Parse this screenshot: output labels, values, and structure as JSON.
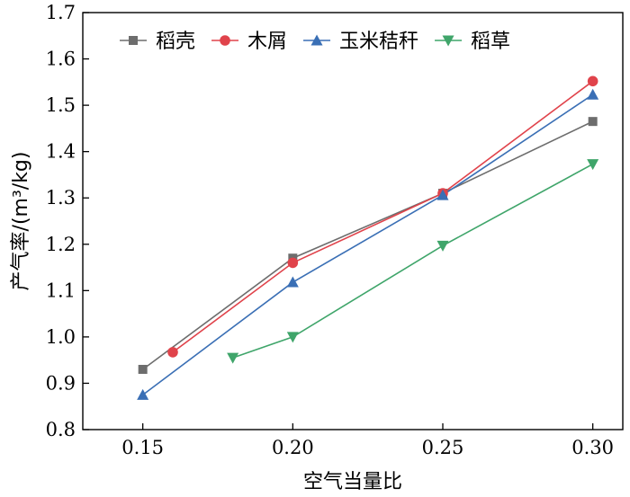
{
  "chart_data": {
    "type": "line",
    "title": "",
    "xlabel": "空气当量比",
    "ylabel": "产气率/(m³/kg)",
    "xlim": [
      0.13,
      0.31
    ],
    "ylim": [
      0.8,
      1.7
    ],
    "xticks": [
      0.15,
      0.2,
      0.25,
      0.3
    ],
    "xtick_labels": [
      "0.15",
      "0.20",
      "0.25",
      "0.30"
    ],
    "yticks": [
      0.8,
      0.9,
      1.0,
      1.1,
      1.2,
      1.3,
      1.4,
      1.5,
      1.6,
      1.7
    ],
    "ytick_labels": [
      "0.8",
      "0.9",
      "1.0",
      "1.1",
      "1.2",
      "1.3",
      "1.4",
      "1.5",
      "1.6",
      "1.7"
    ],
    "grid": false,
    "legend_position": "top",
    "series": [
      {
        "name": "稻壳",
        "color": "#6d6d6d",
        "marker": "square",
        "x": [
          0.15,
          0.2,
          0.25,
          0.3
        ],
        "y": [
          0.93,
          1.17,
          1.31,
          1.465
        ]
      },
      {
        "name": "木屑",
        "color": "#e0434b",
        "marker": "circle",
        "x": [
          0.16,
          0.2,
          0.25,
          0.3
        ],
        "y": [
          0.967,
          1.16,
          1.31,
          1.552
        ]
      },
      {
        "name": "玉米秸秆",
        "color": "#3a6fb5",
        "marker": "triangle-up",
        "x": [
          0.15,
          0.2,
          0.25,
          0.3
        ],
        "y": [
          0.875,
          1.118,
          1.306,
          1.523
        ]
      },
      {
        "name": "稻草",
        "color": "#3fa56a",
        "marker": "triangle-down",
        "x": [
          0.18,
          0.2,
          0.25,
          0.3
        ],
        "y": [
          0.955,
          1.0,
          1.197,
          1.373
        ]
      }
    ]
  }
}
